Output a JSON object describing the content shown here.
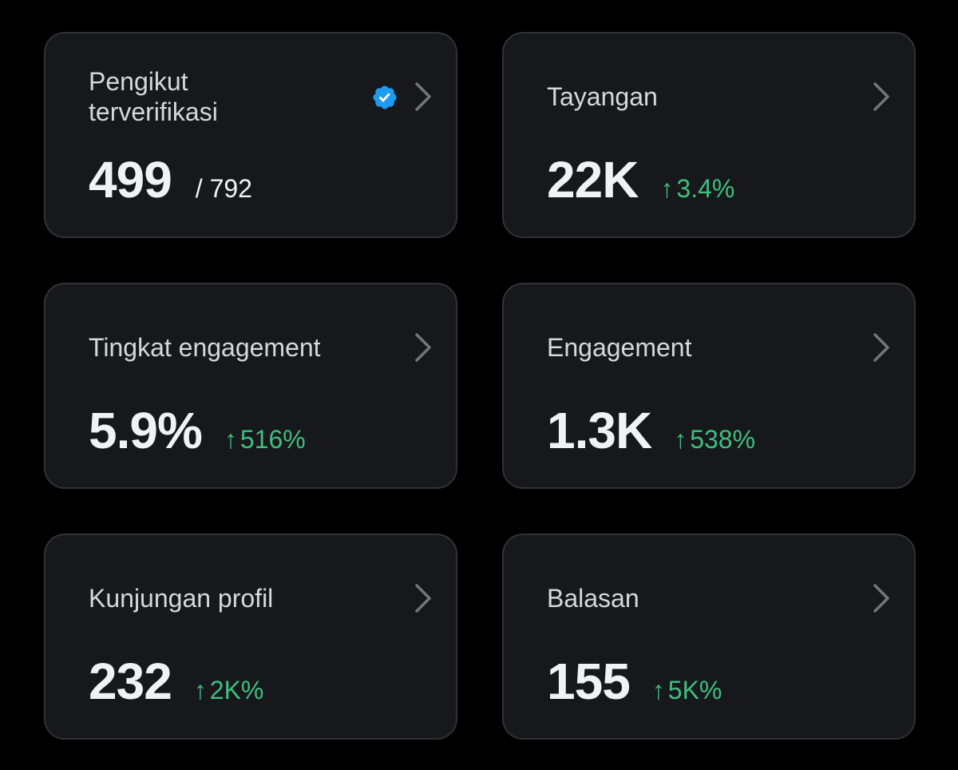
{
  "cards": [
    {
      "label_line1": "Pengikut",
      "label_line2": "terverifikasi",
      "value": "499",
      "total": "/ 792",
      "verified_color": "#1d9bf0"
    },
    {
      "label": "Tayangan",
      "value": "22K",
      "delta_arrow": "↑",
      "delta": "3.4%"
    },
    {
      "label": "Tingkat engagement",
      "value": "5.9%",
      "delta_arrow": "↑",
      "delta": "516%"
    },
    {
      "label": "Engagement",
      "value": "1.3K",
      "delta_arrow": "↑",
      "delta": "538%"
    },
    {
      "label": "Kunjungan profil",
      "value": "232",
      "delta_arrow": "↑",
      "delta": "2K%"
    },
    {
      "label": "Balasan",
      "value": "155",
      "delta_arrow": "↑",
      "delta": "5K%"
    }
  ],
  "colors": {
    "background": "#000000",
    "card": "#16181c",
    "card_border": "#2f3336",
    "positive": "#3fbf7f",
    "verified": "#1d9bf0"
  },
  "icons": {
    "chevron": "chevron-right-icon",
    "verified": "verified-badge-icon"
  }
}
